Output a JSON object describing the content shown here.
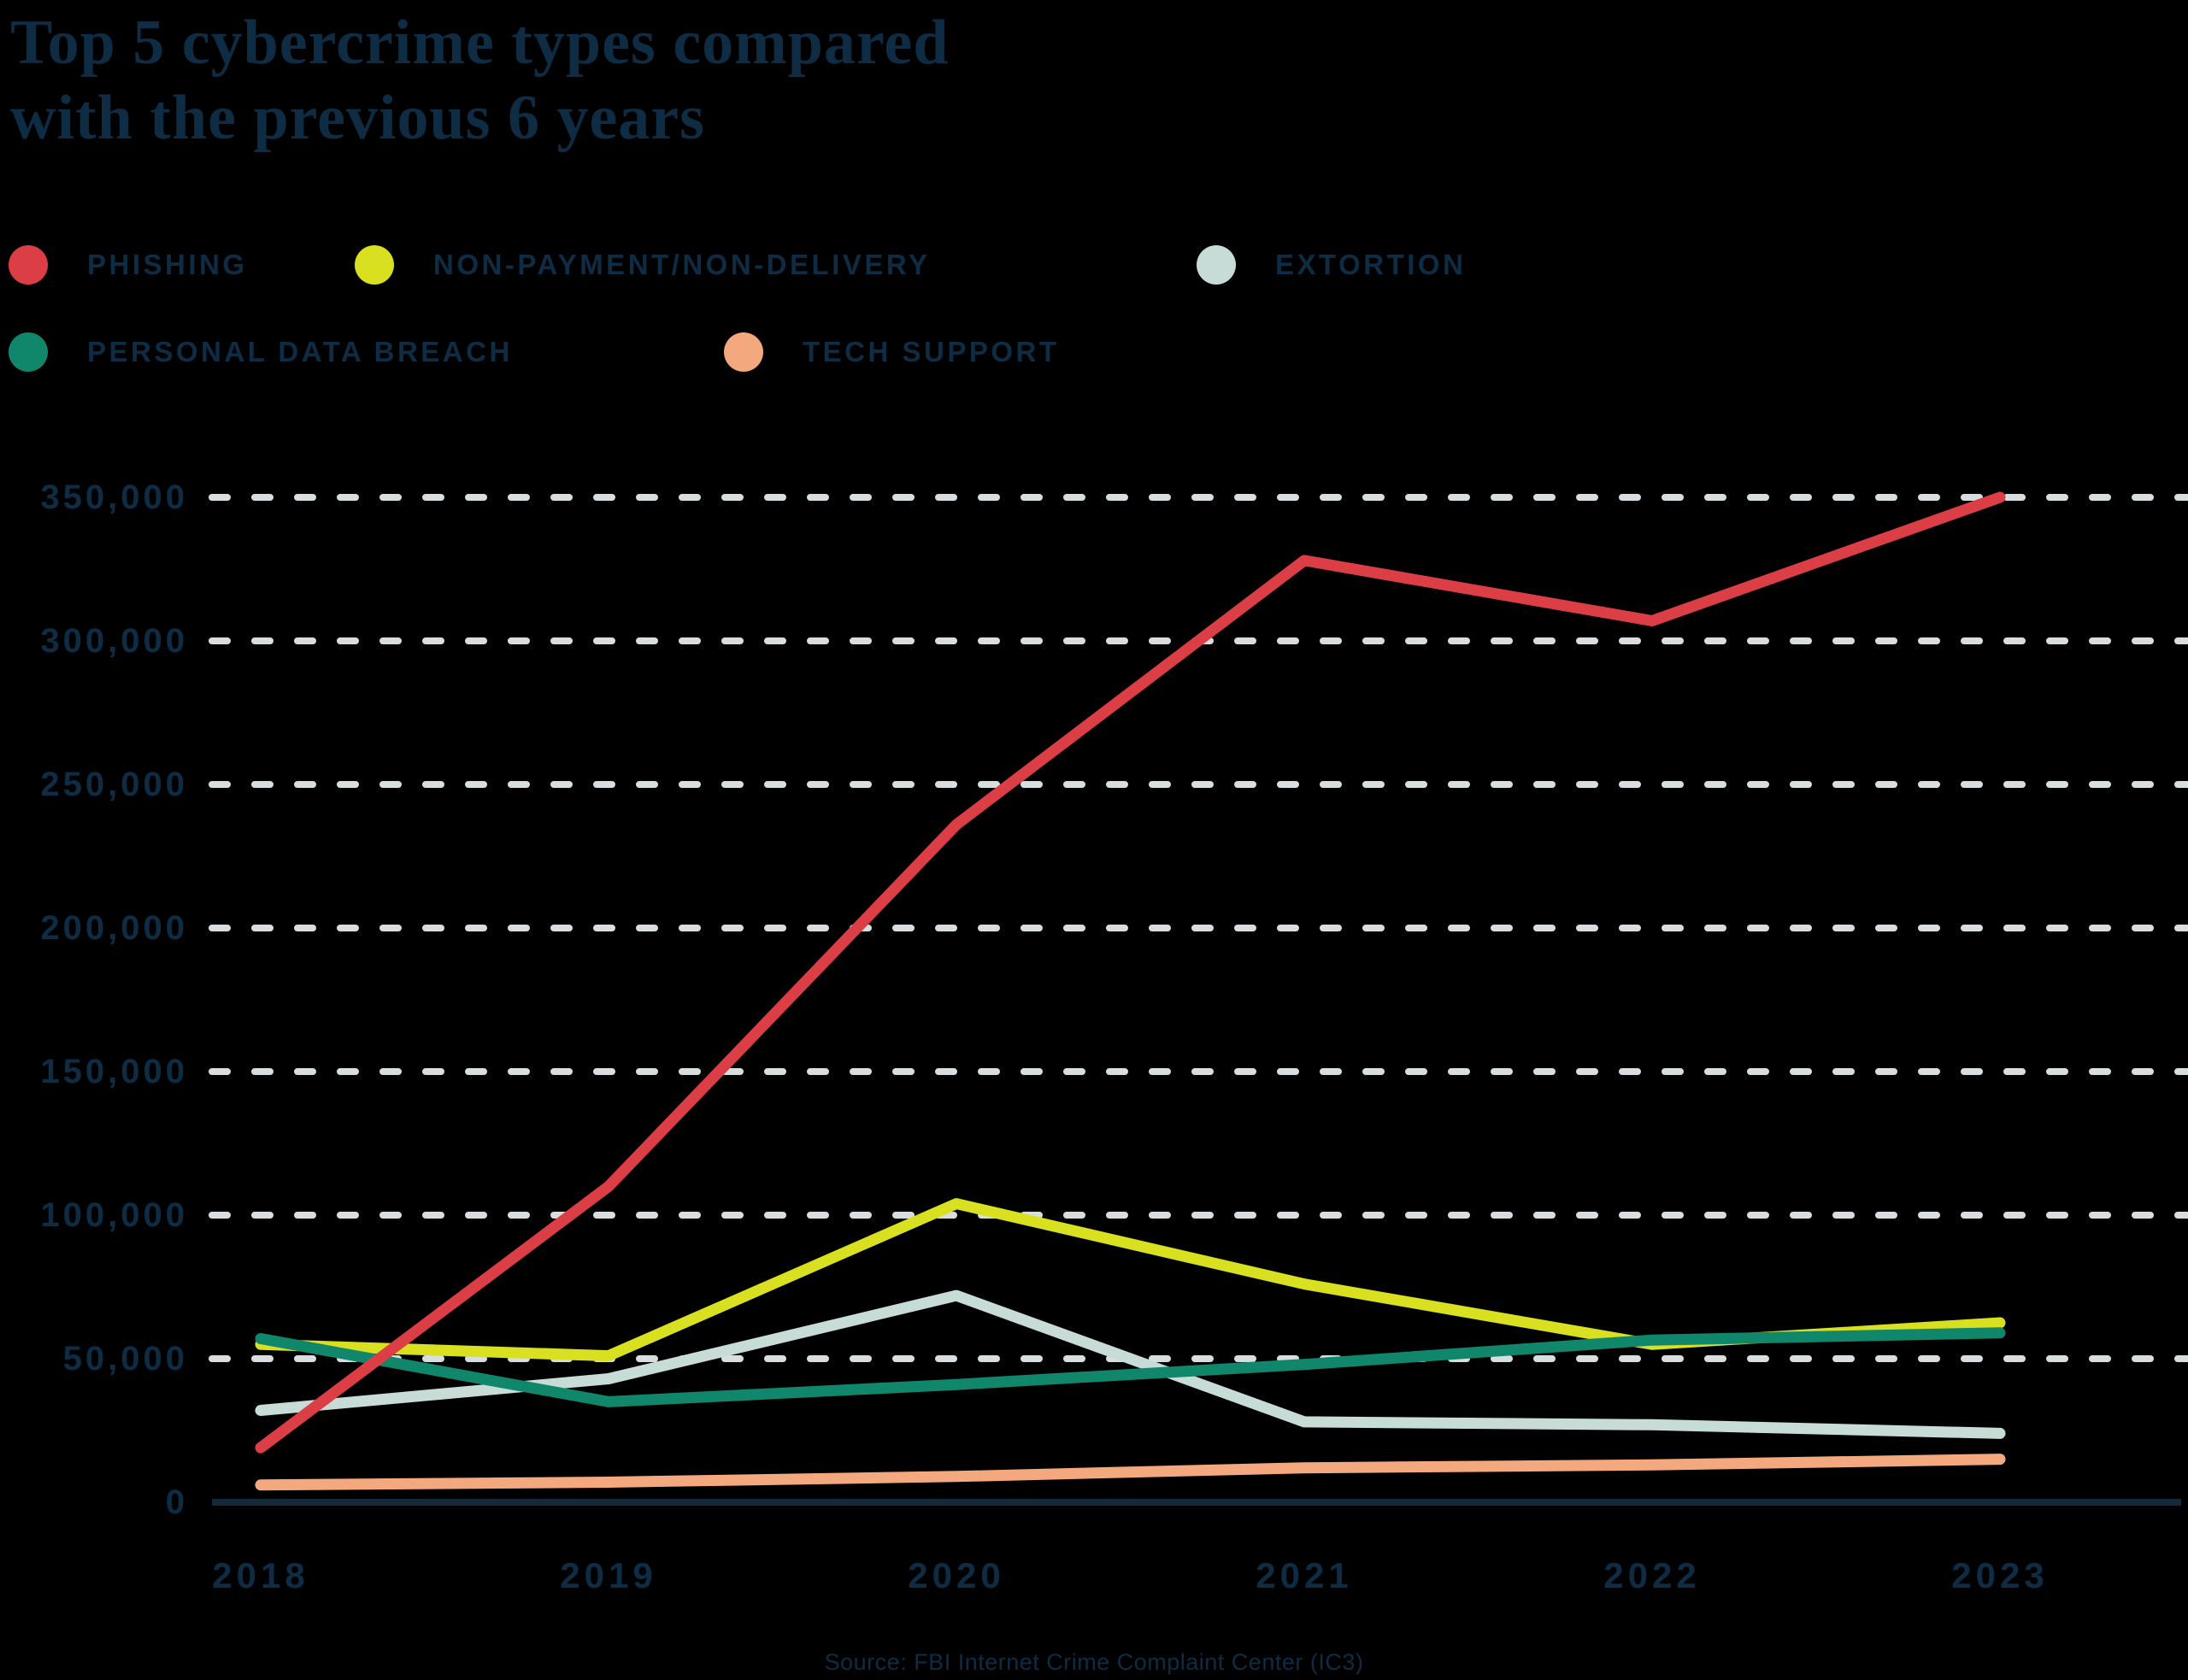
{
  "title": {
    "line1": "Top 5 cybercrime types compared",
    "line2": "with the previous 6 years"
  },
  "legend": {
    "rows": [
      [
        {
          "label": "PHISHING",
          "color": "#dc3e45"
        },
        {
          "label": "NON-PAYMENT/NON-DELIVERY",
          "color": "#d9e01f"
        },
        {
          "label": "EXTORTION",
          "color": "#c7dbd7"
        }
      ],
      [
        {
          "label": "PERSONAL DATA BREACH",
          "color": "#10866a"
        },
        {
          "label": "TECH SUPPORT",
          "color": "#f4a87e"
        }
      ]
    ]
  },
  "source": "Source: FBI Internet Crime Complaint Center (IC3)",
  "colors": {
    "text_navy": "#0e2c44",
    "gridline": "#d8dde0",
    "axis_baseline": "#14293a",
    "background": "#000000"
  },
  "chart_data": {
    "type": "line",
    "title": "Top 5 cybercrime types compared with the previous 6 years",
    "x": [
      "2018",
      "2019",
      "2020",
      "2021",
      "2022",
      "2023"
    ],
    "series": [
      {
        "name": "Phishing",
        "color": "#dc3e45",
        "values": [
          19000,
          110000,
          236000,
          328000,
          307000,
          350000
        ]
      },
      {
        "name": "Non-Payment/Non-Delivery",
        "color": "#d9e01f",
        "values": [
          55000,
          51000,
          104000,
          76000,
          55000,
          62500
        ]
      },
      {
        "name": "Extortion",
        "color": "#c7dbd7",
        "values": [
          32000,
          43000,
          72000,
          28000,
          27000,
          24000
        ]
      },
      {
        "name": "Personal Data Breach",
        "color": "#10866a",
        "values": [
          57000,
          35000,
          41000,
          48000,
          56500,
          59000
        ]
      },
      {
        "name": "Tech Support",
        "color": "#f4a87e",
        "values": [
          6000,
          7000,
          9000,
          12000,
          13000,
          15000
        ]
      }
    ],
    "xlabel": "",
    "ylabel": "",
    "ylim": [
      0,
      350000
    ],
    "yticks": [
      0,
      50000,
      100000,
      150000,
      200000,
      250000,
      300000,
      350000
    ],
    "ytick_labels": [
      "0",
      "50,000",
      "100,000",
      "150,000",
      "200,000",
      "250,000",
      "300,000",
      "350,000"
    ],
    "grid": "horizontal-dashed",
    "legend_position": "top-left"
  }
}
